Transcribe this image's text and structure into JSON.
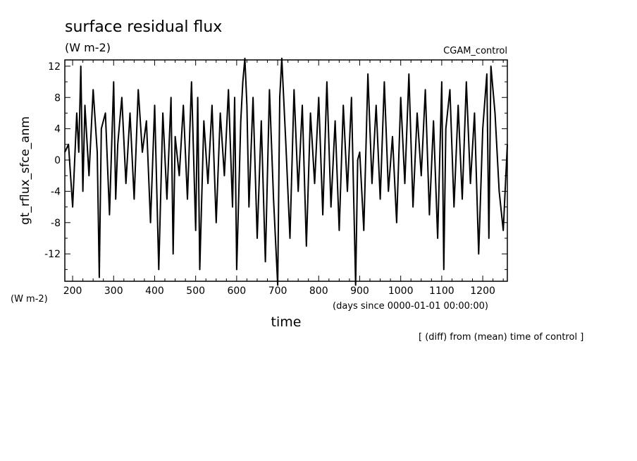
{
  "chart_data": {
    "type": "line",
    "title": "surface residual flux",
    "subtitle": "(W m-2)",
    "run_label": "CGAM_control",
    "ylabel": "gt_rflux_sfce_anm",
    "y_unit_label": "(W m-2)",
    "xlabel": "time",
    "x_unit_label": "(days since 0000-01-01 00:00:00)",
    "note": "[ (diff) from (mean) time of control ]",
    "xlim": [
      181,
      1260
    ],
    "ylim": [
      -15.5,
      12.8
    ],
    "xticks": [
      200,
      300,
      400,
      500,
      600,
      700,
      800,
      900,
      1000,
      1100,
      1200
    ],
    "yticks": [
      -12,
      -8,
      -4,
      0,
      4,
      8,
      12
    ],
    "grid": false,
    "legend": "none",
    "color": "#000000",
    "series": [
      {
        "x": [
          181,
          190,
          200,
          210,
          215,
          220,
          225,
          230,
          240,
          250,
          260,
          265,
          270,
          280,
          290,
          300,
          305,
          310,
          320,
          330,
          340,
          350,
          360,
          370,
          380,
          390,
          400,
          410,
          420,
          430,
          440,
          445,
          450,
          460,
          470,
          480,
          490,
          500,
          505,
          510,
          520,
          530,
          540,
          550,
          560,
          570,
          580,
          590,
          595,
          600,
          610,
          615,
          620,
          625,
          630,
          640,
          650,
          660,
          670,
          680,
          690,
          700,
          705,
          710,
          720,
          730,
          740,
          750,
          760,
          770,
          780,
          790,
          800,
          810,
          820,
          830,
          840,
          850,
          860,
          870,
          880,
          890,
          895,
          900,
          910,
          920,
          930,
          940,
          950,
          960,
          970,
          980,
          990,
          1000,
          1010,
          1020,
          1030,
          1040,
          1050,
          1060,
          1070,
          1080,
          1090,
          1100,
          1105,
          1110,
          1120,
          1130,
          1140,
          1150,
          1160,
          1170,
          1180,
          1190,
          1200,
          1210,
          1215,
          1220,
          1230,
          1240,
          1250,
          1260
        ],
        "y": [
          1,
          2,
          -6,
          6,
          1,
          12,
          -4,
          7,
          -2,
          9,
          1,
          -15,
          4,
          6,
          -7,
          10,
          -5,
          2,
          8,
          -3,
          6,
          -5,
          9,
          1,
          5,
          -8,
          7,
          -14,
          6,
          -5,
          8,
          -12,
          3,
          -2,
          7,
          -5,
          10,
          -9,
          8,
          -14,
          5,
          -3,
          7,
          -8,
          6,
          -2,
          9,
          -6,
          8,
          -14,
          5,
          10,
          13,
          7,
          -6,
          8,
          -10,
          5,
          -13,
          9,
          -5,
          -16,
          8,
          13,
          2,
          -10,
          9,
          -4,
          7,
          -11,
          6,
          -3,
          8,
          -7,
          10,
          -6,
          5,
          -9,
          7,
          -4,
          8,
          -16,
          0,
          1,
          -9,
          11,
          -3,
          7,
          -5,
          10,
          -4,
          3,
          -8,
          8,
          -3,
          11,
          -6,
          6,
          -2,
          9,
          -7,
          5,
          -10,
          10,
          -14,
          4,
          9,
          -6,
          7,
          -5,
          10,
          -3,
          6,
          -12,
          4,
          11,
          -10,
          12,
          6,
          -4,
          -9,
          2
        ]
      }
    ]
  }
}
